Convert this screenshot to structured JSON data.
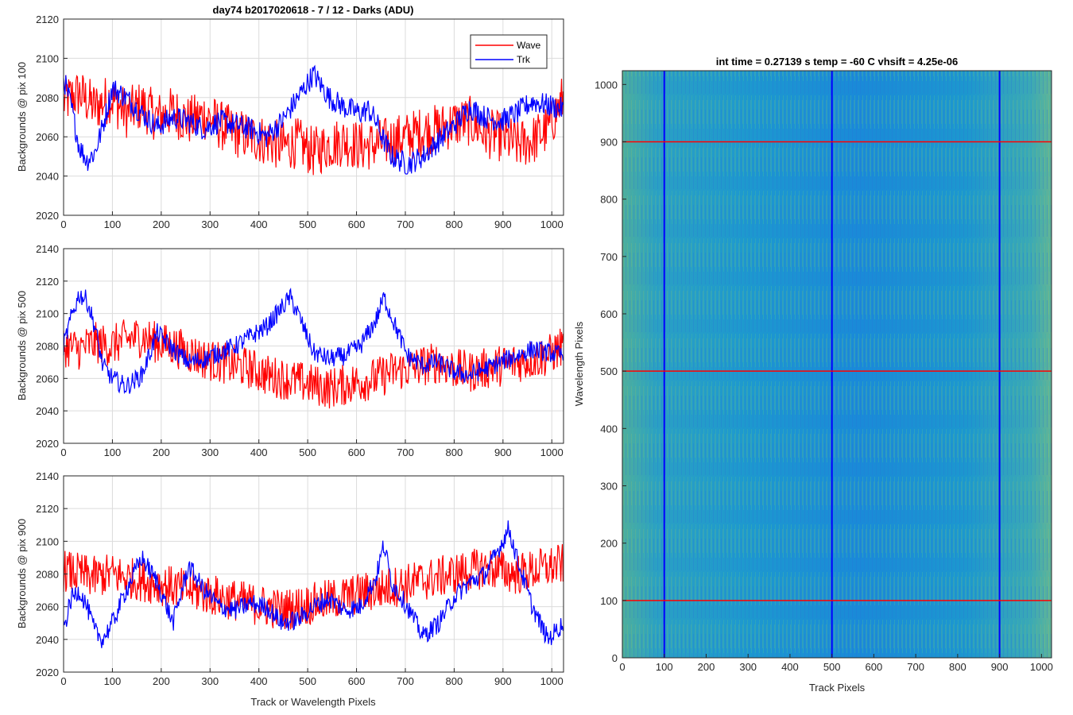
{
  "chart_data": [
    {
      "type": "line",
      "title": "day74 b2017020618 - 7 / 12 - Darks (ADU)",
      "xlabel": "",
      "ylabel": "Backgrounds @ pix 100",
      "xlim": [
        0,
        1024
      ],
      "ylim": [
        2020,
        2120
      ],
      "xticks": [
        0,
        100,
        200,
        300,
        400,
        500,
        600,
        700,
        800,
        900,
        1000
      ],
      "yticks": [
        2020,
        2040,
        2060,
        2080,
        2100,
        2120
      ],
      "grid": true,
      "legend": "top-right",
      "series": [
        {
          "name": "Wave",
          "color": "#ff0000",
          "x": [
            0,
            32,
            64,
            96,
            128,
            160,
            192,
            224,
            256,
            288,
            320,
            352,
            384,
            416,
            448,
            480,
            512,
            544,
            576,
            608,
            640,
            672,
            704,
            736,
            768,
            800,
            832,
            864,
            896,
            928,
            960,
            992,
            1024
          ],
          "values": [
            2078,
            2082,
            2075,
            2080,
            2072,
            2076,
            2070,
            2073,
            2068,
            2071,
            2066,
            2062,
            2060,
            2058,
            2055,
            2057,
            2052,
            2056,
            2058,
            2055,
            2056,
            2058,
            2060,
            2063,
            2064,
            2067,
            2068,
            2062,
            2060,
            2056,
            2058,
            2064,
            2080
          ]
        },
        {
          "name": "Trk",
          "color": "#0000ff",
          "x": [
            0,
            16,
            32,
            48,
            64,
            80,
            100,
            128,
            160,
            192,
            224,
            256,
            288,
            320,
            352,
            384,
            416,
            448,
            480,
            512,
            544,
            576,
            608,
            624,
            640,
            656,
            672,
            704,
            736,
            768,
            800,
            832,
            864,
            896,
            928,
            960,
            992,
            1024
          ],
          "values": [
            2090,
            2075,
            2055,
            2048,
            2052,
            2065,
            2085,
            2080,
            2072,
            2065,
            2070,
            2068,
            2064,
            2068,
            2066,
            2064,
            2060,
            2068,
            2080,
            2092,
            2080,
            2075,
            2072,
            2074,
            2068,
            2058,
            2050,
            2046,
            2050,
            2058,
            2066,
            2075,
            2070,
            2068,
            2072,
            2078,
            2076,
            2074
          ]
        }
      ]
    },
    {
      "type": "line",
      "title": "",
      "xlabel": "",
      "ylabel": "Backgrounds @ pix 500",
      "xlim": [
        0,
        1024
      ],
      "ylim": [
        2020,
        2140
      ],
      "xticks": [
        0,
        100,
        200,
        300,
        400,
        500,
        600,
        700,
        800,
        900,
        1000
      ],
      "yticks": [
        2020,
        2040,
        2060,
        2080,
        2100,
        2120,
        2140
      ],
      "grid": true,
      "series": [
        {
          "name": "Wave",
          "color": "#ff0000",
          "x": [
            0,
            32,
            64,
            96,
            128,
            160,
            192,
            224,
            256,
            288,
            320,
            352,
            384,
            416,
            448,
            480,
            512,
            544,
            576,
            608,
            640,
            672,
            704,
            736,
            768,
            800,
            832,
            864,
            896,
            928,
            960,
            992,
            1024
          ],
          "values": [
            2080,
            2078,
            2082,
            2080,
            2084,
            2086,
            2082,
            2080,
            2076,
            2072,
            2070,
            2068,
            2066,
            2062,
            2060,
            2058,
            2056,
            2054,
            2056,
            2058,
            2060,
            2064,
            2066,
            2068,
            2070,
            2066,
            2064,
            2066,
            2068,
            2070,
            2072,
            2074,
            2080
          ]
        },
        {
          "name": "Trk",
          "color": "#0000ff",
          "x": [
            0,
            16,
            32,
            48,
            64,
            80,
            100,
            128,
            160,
            192,
            224,
            256,
            288,
            320,
            352,
            384,
            416,
            448,
            464,
            480,
            512,
            544,
            576,
            608,
            640,
            656,
            672,
            704,
            736,
            768,
            800,
            832,
            864,
            896,
            928,
            960,
            992,
            1024
          ],
          "values": [
            2080,
            2098,
            2112,
            2108,
            2092,
            2068,
            2060,
            2055,
            2062,
            2088,
            2078,
            2070,
            2072,
            2076,
            2080,
            2086,
            2092,
            2104,
            2110,
            2100,
            2076,
            2072,
            2074,
            2080,
            2096,
            2110,
            2098,
            2074,
            2068,
            2070,
            2064,
            2062,
            2066,
            2070,
            2074,
            2078,
            2076,
            2074
          ]
        }
      ]
    },
    {
      "type": "line",
      "title": "",
      "xlabel": "Track or Wavelength Pixels",
      "ylabel": "Backgrounds @ pix 900",
      "xlim": [
        0,
        1024
      ],
      "ylim": [
        2020,
        2140
      ],
      "xticks": [
        0,
        100,
        200,
        300,
        400,
        500,
        600,
        700,
        800,
        900,
        1000
      ],
      "yticks": [
        2020,
        2040,
        2060,
        2080,
        2100,
        2120,
        2140
      ],
      "grid": true,
      "series": [
        {
          "name": "Wave",
          "color": "#ff0000",
          "x": [
            0,
            32,
            64,
            96,
            128,
            160,
            192,
            224,
            256,
            288,
            320,
            352,
            384,
            416,
            448,
            480,
            512,
            544,
            576,
            608,
            640,
            672,
            704,
            736,
            768,
            800,
            832,
            864,
            896,
            928,
            960,
            992,
            1024
          ],
          "values": [
            2082,
            2080,
            2078,
            2080,
            2078,
            2076,
            2074,
            2072,
            2070,
            2068,
            2066,
            2064,
            2062,
            2060,
            2058,
            2060,
            2062,
            2064,
            2066,
            2068,
            2070,
            2072,
            2074,
            2076,
            2078,
            2080,
            2082,
            2084,
            2082,
            2080,
            2082,
            2084,
            2086
          ]
        },
        {
          "name": "Trk",
          "color": "#0000ff",
          "x": [
            0,
            16,
            32,
            48,
            64,
            80,
            100,
            128,
            160,
            192,
            224,
            256,
            288,
            320,
            352,
            384,
            416,
            448,
            480,
            512,
            544,
            576,
            608,
            640,
            656,
            672,
            704,
            736,
            768,
            800,
            832,
            864,
            896,
            912,
            928,
            960,
            992,
            1024
          ],
          "values": [
            2046,
            2065,
            2070,
            2060,
            2045,
            2040,
            2050,
            2070,
            2090,
            2075,
            2050,
            2085,
            2070,
            2060,
            2058,
            2062,
            2060,
            2050,
            2052,
            2060,
            2065,
            2058,
            2060,
            2078,
            2098,
            2075,
            2060,
            2042,
            2050,
            2066,
            2075,
            2080,
            2098,
            2108,
            2090,
            2060,
            2040,
            2050
          ]
        }
      ]
    },
    {
      "type": "heatmap",
      "title": "int time = 0.27139 s    temp = -60 C    vhsift = 4.25e-06",
      "xlabel": "Track Pixels",
      "ylabel": "Wavelength Pixels",
      "xlim": [
        0,
        1024
      ],
      "ylim": [
        0,
        1024
      ],
      "xticks": [
        0,
        100,
        200,
        300,
        400,
        500,
        600,
        700,
        800,
        900,
        1000
      ],
      "yticks": [
        0,
        100,
        200,
        300,
        400,
        500,
        600,
        700,
        800,
        900,
        1000
      ],
      "colormap": [
        "#2b7bd6",
        "#1da5c8",
        "#7fbf7a",
        "#c8c34a"
      ],
      "vertical_markers": [
        100,
        500,
        900
      ],
      "vertical_marker_color": "#0000ff",
      "horizontal_markers": [
        100,
        500,
        900
      ],
      "horizontal_marker_color": "#ff0000"
    }
  ]
}
